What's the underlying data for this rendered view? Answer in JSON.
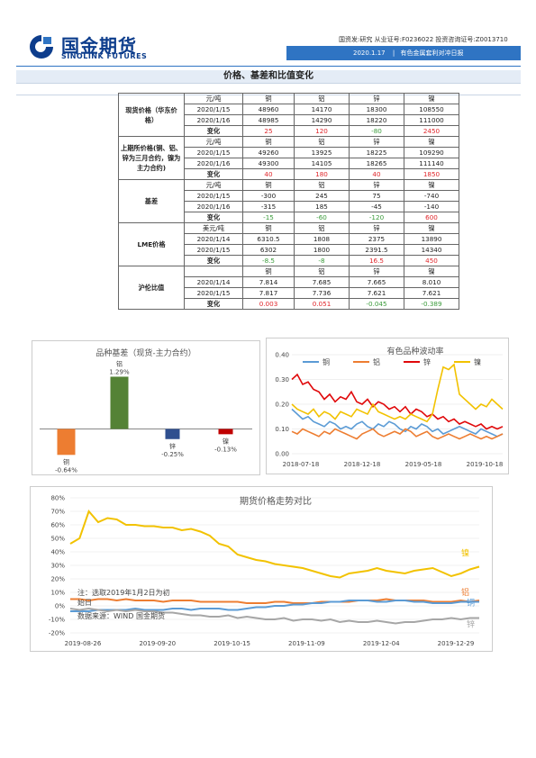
{
  "header": {
    "logo_cn": "国金期货",
    "logo_en": "SINOLINK FUTURES",
    "cert_text": "国资发:研究  从业证号:F0236022  投资咨询证号:Z0013710",
    "date": "2020.1.17",
    "report_name": "有色金属套利对冲日报"
  },
  "section_title": "价格、基差和比值变化",
  "table": {
    "groups": [
      {
        "label": "现货价格（华东价格）",
        "unit": "元/吨",
        "metals": [
          "铜",
          "铝",
          "锌",
          "镍"
        ],
        "rows": [
          {
            "date": "2020/1/15",
            "values": [
              "48960",
              "14170",
              "18300",
              "108550"
            ]
          },
          {
            "date": "2020/1/16",
            "values": [
              "48985",
              "14290",
              "18220",
              "111000"
            ]
          }
        ],
        "change_label": "变化",
        "change": [
          "25",
          "120",
          "-80",
          "2450"
        ],
        "change_colors": [
          "red",
          "red",
          "green",
          "red"
        ]
      },
      {
        "label": "上期所价格(铜、铝、锌为三月合约，镍为主力合约)",
        "unit": "元/吨",
        "metals": [
          "铜",
          "铝",
          "锌",
          "镍"
        ],
        "rows": [
          {
            "date": "2020/1/15",
            "values": [
              "49260",
              "13925",
              "18225",
              "109290"
            ]
          },
          {
            "date": "2020/1/16",
            "values": [
              "49300",
              "14105",
              "18265",
              "111140"
            ]
          }
        ],
        "change_label": "变化",
        "change": [
          "40",
          "180",
          "40",
          "1850"
        ],
        "change_colors": [
          "red",
          "red",
          "red",
          "red"
        ]
      },
      {
        "label": "基差",
        "unit": "元/吨",
        "metals": [
          "铜",
          "铝",
          "锌",
          "镍"
        ],
        "rows": [
          {
            "date": "2020/1/15",
            "values": [
              "-300",
              "245",
              "75",
              "-740"
            ]
          },
          {
            "date": "2020/1/16",
            "values": [
              "-315",
              "185",
              "-45",
              "-140"
            ]
          }
        ],
        "change_label": "变化",
        "change": [
          "-15",
          "-60",
          "-120",
          "600"
        ],
        "change_colors": [
          "green",
          "green",
          "green",
          "red"
        ]
      },
      {
        "label": "LME价格",
        "unit": "美元/吨",
        "metals": [
          "铜",
          "铝",
          "锌",
          "镍"
        ],
        "rows": [
          {
            "date": "2020/1/14",
            "values": [
              "6310.5",
              "1808",
              "2375",
              "13890"
            ]
          },
          {
            "date": "2020/1/15",
            "values": [
              "6302",
              "1800",
              "2391.5",
              "14340"
            ]
          }
        ],
        "change_label": "变化",
        "change": [
          "-8.5",
          "-8",
          "16.5",
          "450"
        ],
        "change_colors": [
          "green",
          "green",
          "red",
          "red"
        ]
      },
      {
        "label": "沪伦比值",
        "unit": "",
        "metals": [
          "铜",
          "铝",
          "锌",
          "镍"
        ],
        "rows": [
          {
            "date": "2020/1/14",
            "values": [
              "7.814",
              "7.685",
              "7.665",
              "8.010"
            ]
          },
          {
            "date": "2020/1/15",
            "values": [
              "7.817",
              "7.736",
              "7.621",
              "7.621"
            ]
          }
        ],
        "change_label": "变化",
        "change": [
          "0.003",
          "0.051",
          "-0.045",
          "-0.389"
        ],
        "change_colors": [
          "red",
          "red",
          "green",
          "green"
        ]
      }
    ]
  },
  "chart_data": [
    {
      "type": "bar",
      "title": "品种基差（现货-主力合约）",
      "categories": [
        "铜",
        "铝",
        "锌",
        "镍"
      ],
      "values": [
        -0.64,
        1.29,
        -0.25,
        -0.13
      ],
      "value_labels": [
        "-0.64%",
        "1.29%",
        "-0.25%",
        "-0.13%"
      ],
      "colors": [
        "#ed7d31",
        "#548235",
        "#2f4f8f",
        "#c00000"
      ],
      "ylim": [
        -0.9,
        1.5
      ]
    },
    {
      "type": "line",
      "title": "有色品种波动率",
      "x_ticks": [
        "2018-07-18",
        "2018-12-18",
        "2019-05-18",
        "2019-10-18"
      ],
      "y_ticks": [
        "0.00",
        "0.10",
        "0.20",
        "0.30",
        "0.40"
      ],
      "ylim": [
        0,
        0.4
      ],
      "legend_position": "top",
      "series": [
        {
          "name": "铜",
          "color": "#5b9bd5",
          "values": [
            0.18,
            0.16,
            0.14,
            0.15,
            0.13,
            0.12,
            0.11,
            0.13,
            0.12,
            0.1,
            0.11,
            0.1,
            0.12,
            0.13,
            0.11,
            0.1,
            0.12,
            0.11,
            0.13,
            0.12,
            0.1,
            0.09,
            0.11,
            0.1,
            0.12,
            0.11,
            0.09,
            0.1,
            0.08,
            0.09,
            0.1,
            0.11,
            0.1,
            0.09,
            0.08,
            0.1,
            0.09,
            0.08,
            0.07,
            0.08
          ]
        },
        {
          "name": "铝",
          "color": "#ed7d31",
          "values": [
            0.09,
            0.08,
            0.1,
            0.09,
            0.08,
            0.07,
            0.09,
            0.08,
            0.1,
            0.09,
            0.08,
            0.07,
            0.06,
            0.08,
            0.09,
            0.1,
            0.08,
            0.07,
            0.08,
            0.09,
            0.08,
            0.1,
            0.09,
            0.07,
            0.08,
            0.09,
            0.07,
            0.06,
            0.07,
            0.08,
            0.07,
            0.06,
            0.07,
            0.08,
            0.07,
            0.06,
            0.07,
            0.06,
            0.07,
            0.08
          ]
        },
        {
          "name": "锌",
          "color": "#e0080a",
          "values": [
            0.3,
            0.32,
            0.28,
            0.29,
            0.26,
            0.25,
            0.22,
            0.24,
            0.21,
            0.23,
            0.22,
            0.25,
            0.21,
            0.2,
            0.22,
            0.19,
            0.21,
            0.2,
            0.18,
            0.19,
            0.17,
            0.19,
            0.16,
            0.18,
            0.17,
            0.15,
            0.16,
            0.14,
            0.15,
            0.13,
            0.14,
            0.12,
            0.13,
            0.12,
            0.11,
            0.12,
            0.1,
            0.11,
            0.1,
            0.11
          ]
        },
        {
          "name": "镍",
          "color": "#f2c200",
          "values": [
            0.2,
            0.18,
            0.17,
            0.16,
            0.18,
            0.15,
            0.17,
            0.16,
            0.14,
            0.17,
            0.16,
            0.15,
            0.18,
            0.17,
            0.16,
            0.2,
            0.17,
            0.16,
            0.15,
            0.14,
            0.15,
            0.14,
            0.16,
            0.15,
            0.14,
            0.13,
            0.16,
            0.26,
            0.35,
            0.34,
            0.36,
            0.24,
            0.22,
            0.2,
            0.18,
            0.2,
            0.19,
            0.22,
            0.2,
            0.18
          ]
        }
      ]
    },
    {
      "type": "line",
      "title": "期货价格走势对比",
      "x_ticks": [
        "2019-08-26",
        "2019-09-20",
        "2019-10-15",
        "2019-11-09",
        "2019-12-04",
        "2019-12-29"
      ],
      "y_ticks": [
        "80%",
        "70%",
        "60%",
        "50%",
        "40%",
        "30%",
        "20%",
        "10%",
        "0%",
        "-10%",
        "-20%"
      ],
      "ylim": [
        -20,
        80
      ],
      "note": "注：选取2019年1月2日为初始日",
      "source": "数据来源：WIND 国金期货",
      "series": [
        {
          "name": "镍",
          "color": "#f2c200",
          "values": [
            46,
            50,
            70,
            62,
            65,
            64,
            60,
            60,
            59,
            59,
            58,
            58,
            56,
            57,
            55,
            52,
            46,
            44,
            38,
            36,
            34,
            33,
            31,
            30,
            29,
            28,
            26,
            24,
            22,
            21,
            24,
            25,
            26,
            28,
            26,
            25,
            24,
            26,
            27,
            28,
            25,
            22,
            24,
            27,
            29
          ]
        },
        {
          "name": "铝",
          "color": "#ed7d31",
          "values": [
            5,
            5,
            4,
            5,
            5,
            4,
            5,
            4,
            4,
            4,
            3,
            4,
            4,
            4,
            3,
            3,
            3,
            3,
            3,
            2,
            2,
            2,
            3,
            3,
            2,
            2,
            2,
            3,
            3,
            3,
            3,
            4,
            4,
            4,
            5,
            4,
            4,
            4,
            4,
            3,
            3,
            3,
            4,
            3,
            4
          ]
        },
        {
          "name": "铜",
          "color": "#5b9bd5",
          "values": [
            -4,
            -4,
            -4,
            -3,
            -3,
            -3,
            -3,
            -2,
            -3,
            -3,
            -3,
            -2,
            -2,
            -3,
            -2,
            -2,
            -2,
            -3,
            -3,
            -2,
            -1,
            -1,
            0,
            0,
            1,
            1,
            2,
            2,
            3,
            3,
            4,
            4,
            4,
            3,
            3,
            4,
            4,
            3,
            3,
            2,
            2,
            2,
            3,
            3,
            3
          ]
        },
        {
          "name": "锌",
          "color": "#a6a6a6",
          "values": [
            -2,
            -3,
            -2,
            -3,
            -4,
            -3,
            -4,
            -3,
            -4,
            -4,
            -5,
            -5,
            -6,
            -7,
            -7,
            -8,
            -8,
            -7,
            -9,
            -8,
            -9,
            -10,
            -10,
            -9,
            -11,
            -10,
            -10,
            -11,
            -10,
            -12,
            -11,
            -12,
            -12,
            -11,
            -12,
            -13,
            -12,
            -12,
            -11,
            -10,
            -10,
            -9,
            -10,
            -9,
            -9
          ]
        }
      ]
    }
  ]
}
